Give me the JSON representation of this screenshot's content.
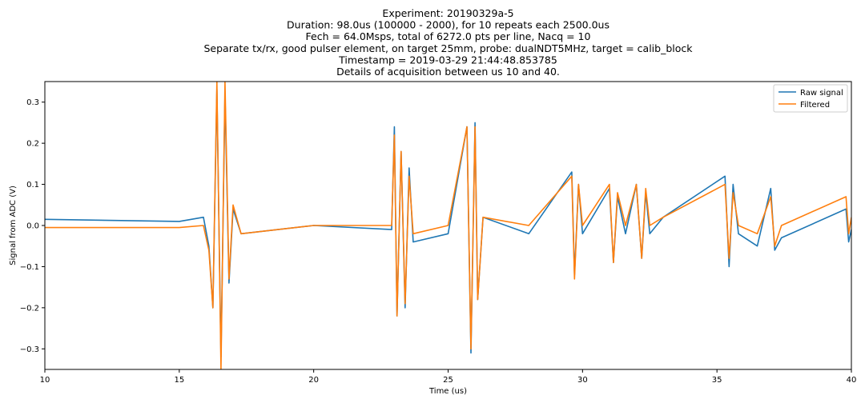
{
  "chart_data": {
    "type": "line",
    "title_lines": [
      "Experiment: 20190329a-5",
      "Duration: 98.0us (100000 - 2000), for 10 repeats each 2500.0us",
      "Fech = 64.0Msps, total of 6272.0 pts per line, Nacq = 10",
      "Separate tx/rx, good pulser element, on target 25mm, probe: dualNDT5MHz, target = calib_block",
      "Timestamp = 2019-03-29 21:44:48.853785",
      "Details of acquisition between us 10 and 40."
    ],
    "xlabel": "Time (us)",
    "ylabel": "Signal from ADC (V)",
    "xlim": [
      10,
      40
    ],
    "ylim": [
      -0.35,
      0.35
    ],
    "xticks": [
      10,
      15,
      20,
      25,
      30,
      35,
      40
    ],
    "yticks": [
      -0.3,
      -0.2,
      -0.1,
      0.0,
      0.1,
      0.2,
      0.3
    ],
    "ytick_labels": [
      "−0.3",
      "−0.2",
      "−0.1",
      "0.0",
      "0.1",
      "0.2",
      "0.3"
    ],
    "legend_position": "top-right",
    "series": [
      {
        "name": "Raw signal",
        "color": "#1f77b4",
        "points": [
          [
            10.0,
            0.015
          ],
          [
            15.0,
            0.01
          ],
          [
            15.9,
            0.02
          ],
          [
            16.1,
            -0.05
          ],
          [
            16.25,
            -0.2
          ],
          [
            16.4,
            0.33
          ],
          [
            16.55,
            -0.32
          ],
          [
            16.7,
            0.32
          ],
          [
            16.85,
            -0.14
          ],
          [
            17.0,
            0.04
          ],
          [
            17.3,
            -0.02
          ],
          [
            20.0,
            0.0
          ],
          [
            22.9,
            -0.01
          ],
          [
            23.0,
            0.24
          ],
          [
            23.1,
            -0.22
          ],
          [
            23.25,
            0.18
          ],
          [
            23.4,
            -0.2
          ],
          [
            23.55,
            0.14
          ],
          [
            23.7,
            -0.04
          ],
          [
            25.0,
            -0.02
          ],
          [
            25.7,
            0.24
          ],
          [
            25.85,
            -0.31
          ],
          [
            26.0,
            0.25
          ],
          [
            26.1,
            -0.18
          ],
          [
            26.3,
            0.02
          ],
          [
            28.0,
            -0.02
          ],
          [
            29.6,
            0.13
          ],
          [
            29.7,
            -0.12
          ],
          [
            29.85,
            0.1
          ],
          [
            30.0,
            -0.02
          ],
          [
            31.0,
            0.09
          ],
          [
            31.15,
            -0.09
          ],
          [
            31.3,
            0.07
          ],
          [
            31.6,
            -0.02
          ],
          [
            32.0,
            0.1
          ],
          [
            32.2,
            -0.08
          ],
          [
            32.35,
            0.08
          ],
          [
            32.5,
            -0.02
          ],
          [
            33.0,
            0.02
          ],
          [
            35.3,
            0.12
          ],
          [
            35.45,
            -0.1
          ],
          [
            35.6,
            0.1
          ],
          [
            35.8,
            -0.02
          ],
          [
            36.5,
            -0.05
          ],
          [
            37.0,
            0.09
          ],
          [
            37.15,
            -0.06
          ],
          [
            37.4,
            -0.03
          ],
          [
            39.8,
            0.04
          ],
          [
            39.9,
            -0.04
          ],
          [
            40.0,
            -0.01
          ]
        ]
      },
      {
        "name": "Filtered",
        "color": "#ff7f0e",
        "points": [
          [
            10.0,
            -0.005
          ],
          [
            15.0,
            -0.005
          ],
          [
            15.9,
            0.0
          ],
          [
            16.1,
            -0.06
          ],
          [
            16.25,
            -0.2
          ],
          [
            16.4,
            0.35
          ],
          [
            16.55,
            -0.35
          ],
          [
            16.7,
            0.35
          ],
          [
            16.85,
            -0.13
          ],
          [
            17.0,
            0.05
          ],
          [
            17.3,
            -0.02
          ],
          [
            20.0,
            0.0
          ],
          [
            22.9,
            0.0
          ],
          [
            23.0,
            0.22
          ],
          [
            23.1,
            -0.22
          ],
          [
            23.25,
            0.18
          ],
          [
            23.4,
            -0.19
          ],
          [
            23.55,
            0.12
          ],
          [
            23.7,
            -0.02
          ],
          [
            25.0,
            0.0
          ],
          [
            25.7,
            0.24
          ],
          [
            25.85,
            -0.3
          ],
          [
            26.0,
            0.24
          ],
          [
            26.1,
            -0.18
          ],
          [
            26.3,
            0.02
          ],
          [
            28.0,
            0.0
          ],
          [
            29.6,
            0.12
          ],
          [
            29.7,
            -0.13
          ],
          [
            29.85,
            0.1
          ],
          [
            30.0,
            0.0
          ],
          [
            31.0,
            0.1
          ],
          [
            31.15,
            -0.09
          ],
          [
            31.3,
            0.08
          ],
          [
            31.6,
            0.0
          ],
          [
            32.0,
            0.1
          ],
          [
            32.2,
            -0.08
          ],
          [
            32.35,
            0.09
          ],
          [
            32.5,
            0.0
          ],
          [
            33.0,
            0.02
          ],
          [
            35.3,
            0.1
          ],
          [
            35.45,
            -0.08
          ],
          [
            35.6,
            0.08
          ],
          [
            35.8,
            0.0
          ],
          [
            36.5,
            -0.02
          ],
          [
            37.0,
            0.07
          ],
          [
            37.15,
            -0.05
          ],
          [
            37.4,
            0.0
          ],
          [
            39.8,
            0.07
          ],
          [
            39.9,
            -0.02
          ],
          [
            40.0,
            0.02
          ]
        ]
      }
    ]
  }
}
